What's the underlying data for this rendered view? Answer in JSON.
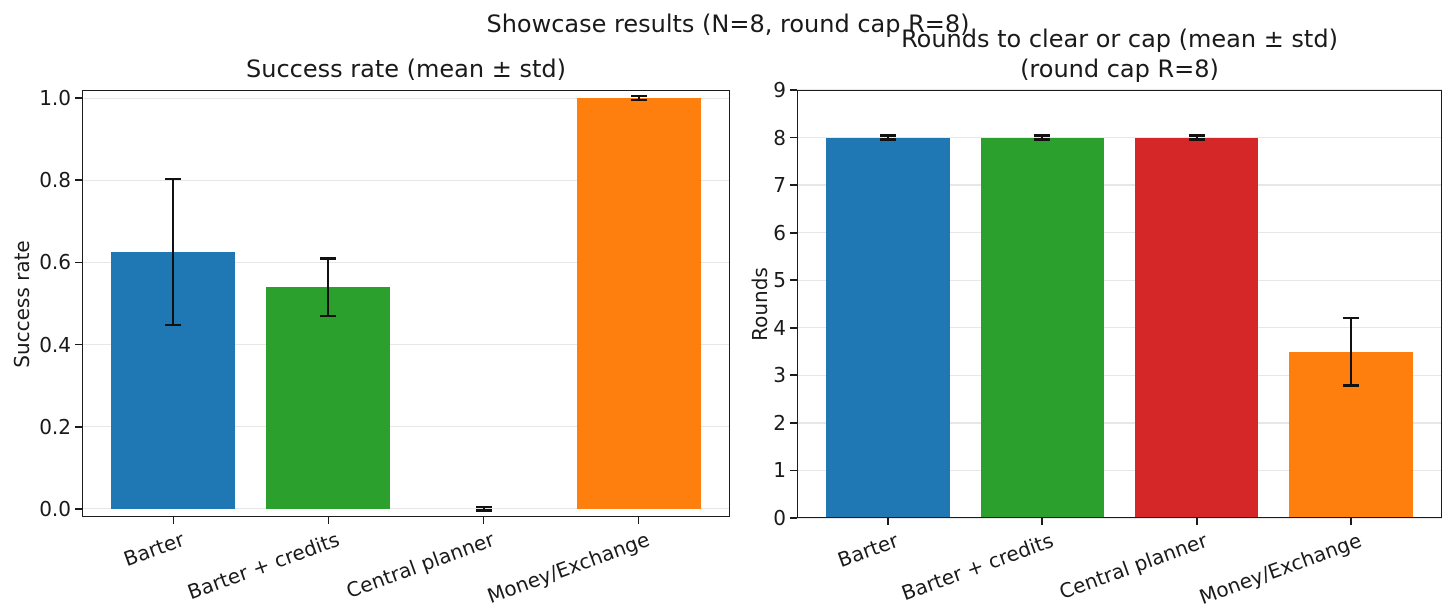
{
  "figure": {
    "suptitle": "Showcase results (N=8, round cap R=8)",
    "background": "#ffffff",
    "text_color": "#1a1a1a"
  },
  "chart_data": [
    {
      "type": "bar",
      "title_lines": [
        "Success rate (mean ± std)"
      ],
      "ylabel": "Success rate",
      "xlabel": "",
      "categories": [
        "Barter",
        "Barter + credits",
        "Central planner",
        "Money/Exchange"
      ],
      "values": [
        0.625,
        0.54,
        0.0,
        1.0
      ],
      "errors": [
        0.178,
        0.07,
        0.004,
        0.005
      ],
      "bar_colors": [
        "#1f77b4",
        "#2ca02c",
        "#d62728",
        "#ff7f0e"
      ],
      "ylim": [
        -0.02,
        1.02
      ],
      "yticks": [
        0.0,
        0.2,
        0.4,
        0.6,
        0.8,
        1.0
      ],
      "ytick_labels": [
        "0.0",
        "0.2",
        "0.4",
        "0.6",
        "0.8",
        "1.0"
      ],
      "xlim": [
        -0.59,
        3.59
      ],
      "bar_width": 0.8,
      "grid": true,
      "legend": null,
      "xtick_rotation_deg": 20
    },
    {
      "type": "bar",
      "title_lines": [
        "Rounds to clear or cap (mean ± std)",
        "(round cap R=8)"
      ],
      "ylabel": "Rounds",
      "xlabel": "",
      "categories": [
        "Barter",
        "Barter + credits",
        "Central planner",
        "Money/Exchange"
      ],
      "values": [
        8.0,
        8.0,
        8.0,
        3.5
      ],
      "errors": [
        0.04,
        0.04,
        0.04,
        0.71
      ],
      "bar_colors": [
        "#1f77b4",
        "#2ca02c",
        "#d62728",
        "#ff7f0e"
      ],
      "ylim": [
        0,
        9
      ],
      "yticks": [
        0,
        1,
        2,
        3,
        4,
        5,
        6,
        7,
        8,
        9
      ],
      "ytick_labels": [
        "0",
        "1",
        "2",
        "3",
        "4",
        "5",
        "6",
        "7",
        "8",
        "9"
      ],
      "xlim": [
        -0.59,
        3.59
      ],
      "bar_width": 0.8,
      "grid": true,
      "legend": null,
      "xtick_rotation_deg": 20
    }
  ]
}
